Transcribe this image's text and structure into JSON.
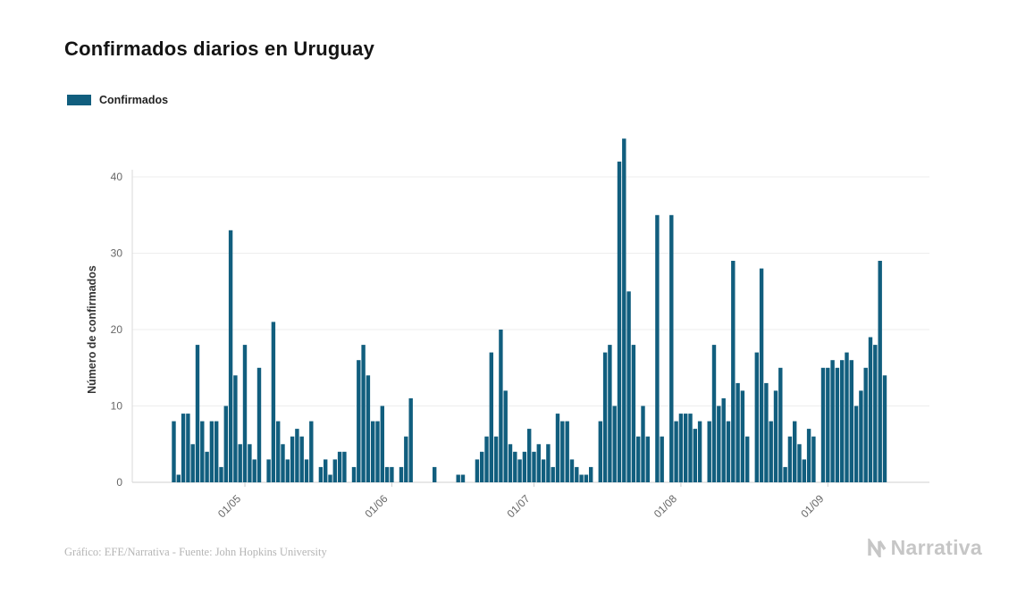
{
  "chart_data": {
    "type": "bar",
    "title": "Confirmados diarios en Uruguay",
    "series": [
      {
        "name": "Confirmados",
        "color": "#115e7e"
      }
    ],
    "xlabel": "",
    "ylabel": "Número de confirmados",
    "yticks": [
      0,
      10,
      20,
      30,
      40
    ],
    "ylim": [
      0,
      46
    ],
    "grid": true,
    "legend_position": "top-left",
    "x_ticks": [
      {
        "label": "01/05",
        "index": 16
      },
      {
        "label": "01/06",
        "index": 47
      },
      {
        "label": "01/07",
        "index": 77
      },
      {
        "label": "01/08",
        "index": 108
      },
      {
        "label": "01/09",
        "index": 139
      }
    ],
    "values": [
      0,
      8,
      1,
      9,
      9,
      5,
      18,
      8,
      4,
      8,
      8,
      2,
      10,
      33,
      14,
      5,
      18,
      5,
      3,
      15,
      0,
      3,
      21,
      8,
      5,
      3,
      6,
      7,
      6,
      3,
      8,
      0,
      2,
      3,
      1,
      3,
      4,
      4,
      0,
      2,
      16,
      18,
      14,
      8,
      8,
      10,
      2,
      2,
      0,
      2,
      6,
      11,
      0,
      0,
      0,
      0,
      2,
      0,
      0,
      0,
      0,
      1,
      1,
      0,
      0,
      3,
      4,
      6,
      17,
      6,
      20,
      12,
      5,
      4,
      3,
      4,
      7,
      4,
      5,
      3,
      5,
      2,
      9,
      8,
      8,
      3,
      2,
      1,
      1,
      2,
      0,
      8,
      17,
      18,
      10,
      42,
      45,
      25,
      18,
      6,
      10,
      6,
      0,
      35,
      6,
      0,
      35,
      8,
      9,
      9,
      9,
      7,
      8,
      0,
      8,
      18,
      10,
      11,
      8,
      29,
      13,
      12,
      6,
      0,
      17,
      28,
      13,
      8,
      12,
      15,
      2,
      6,
      8,
      5,
      3,
      7,
      6,
      0,
      15,
      15,
      16,
      15,
      16,
      17,
      16,
      10,
      12,
      15,
      19,
      18,
      29,
      14
    ]
  },
  "footer": {
    "credit": "Gráfico: EFE/Narrativa - Fuente: John Hopkins University",
    "logo_text": "Narrativa"
  }
}
